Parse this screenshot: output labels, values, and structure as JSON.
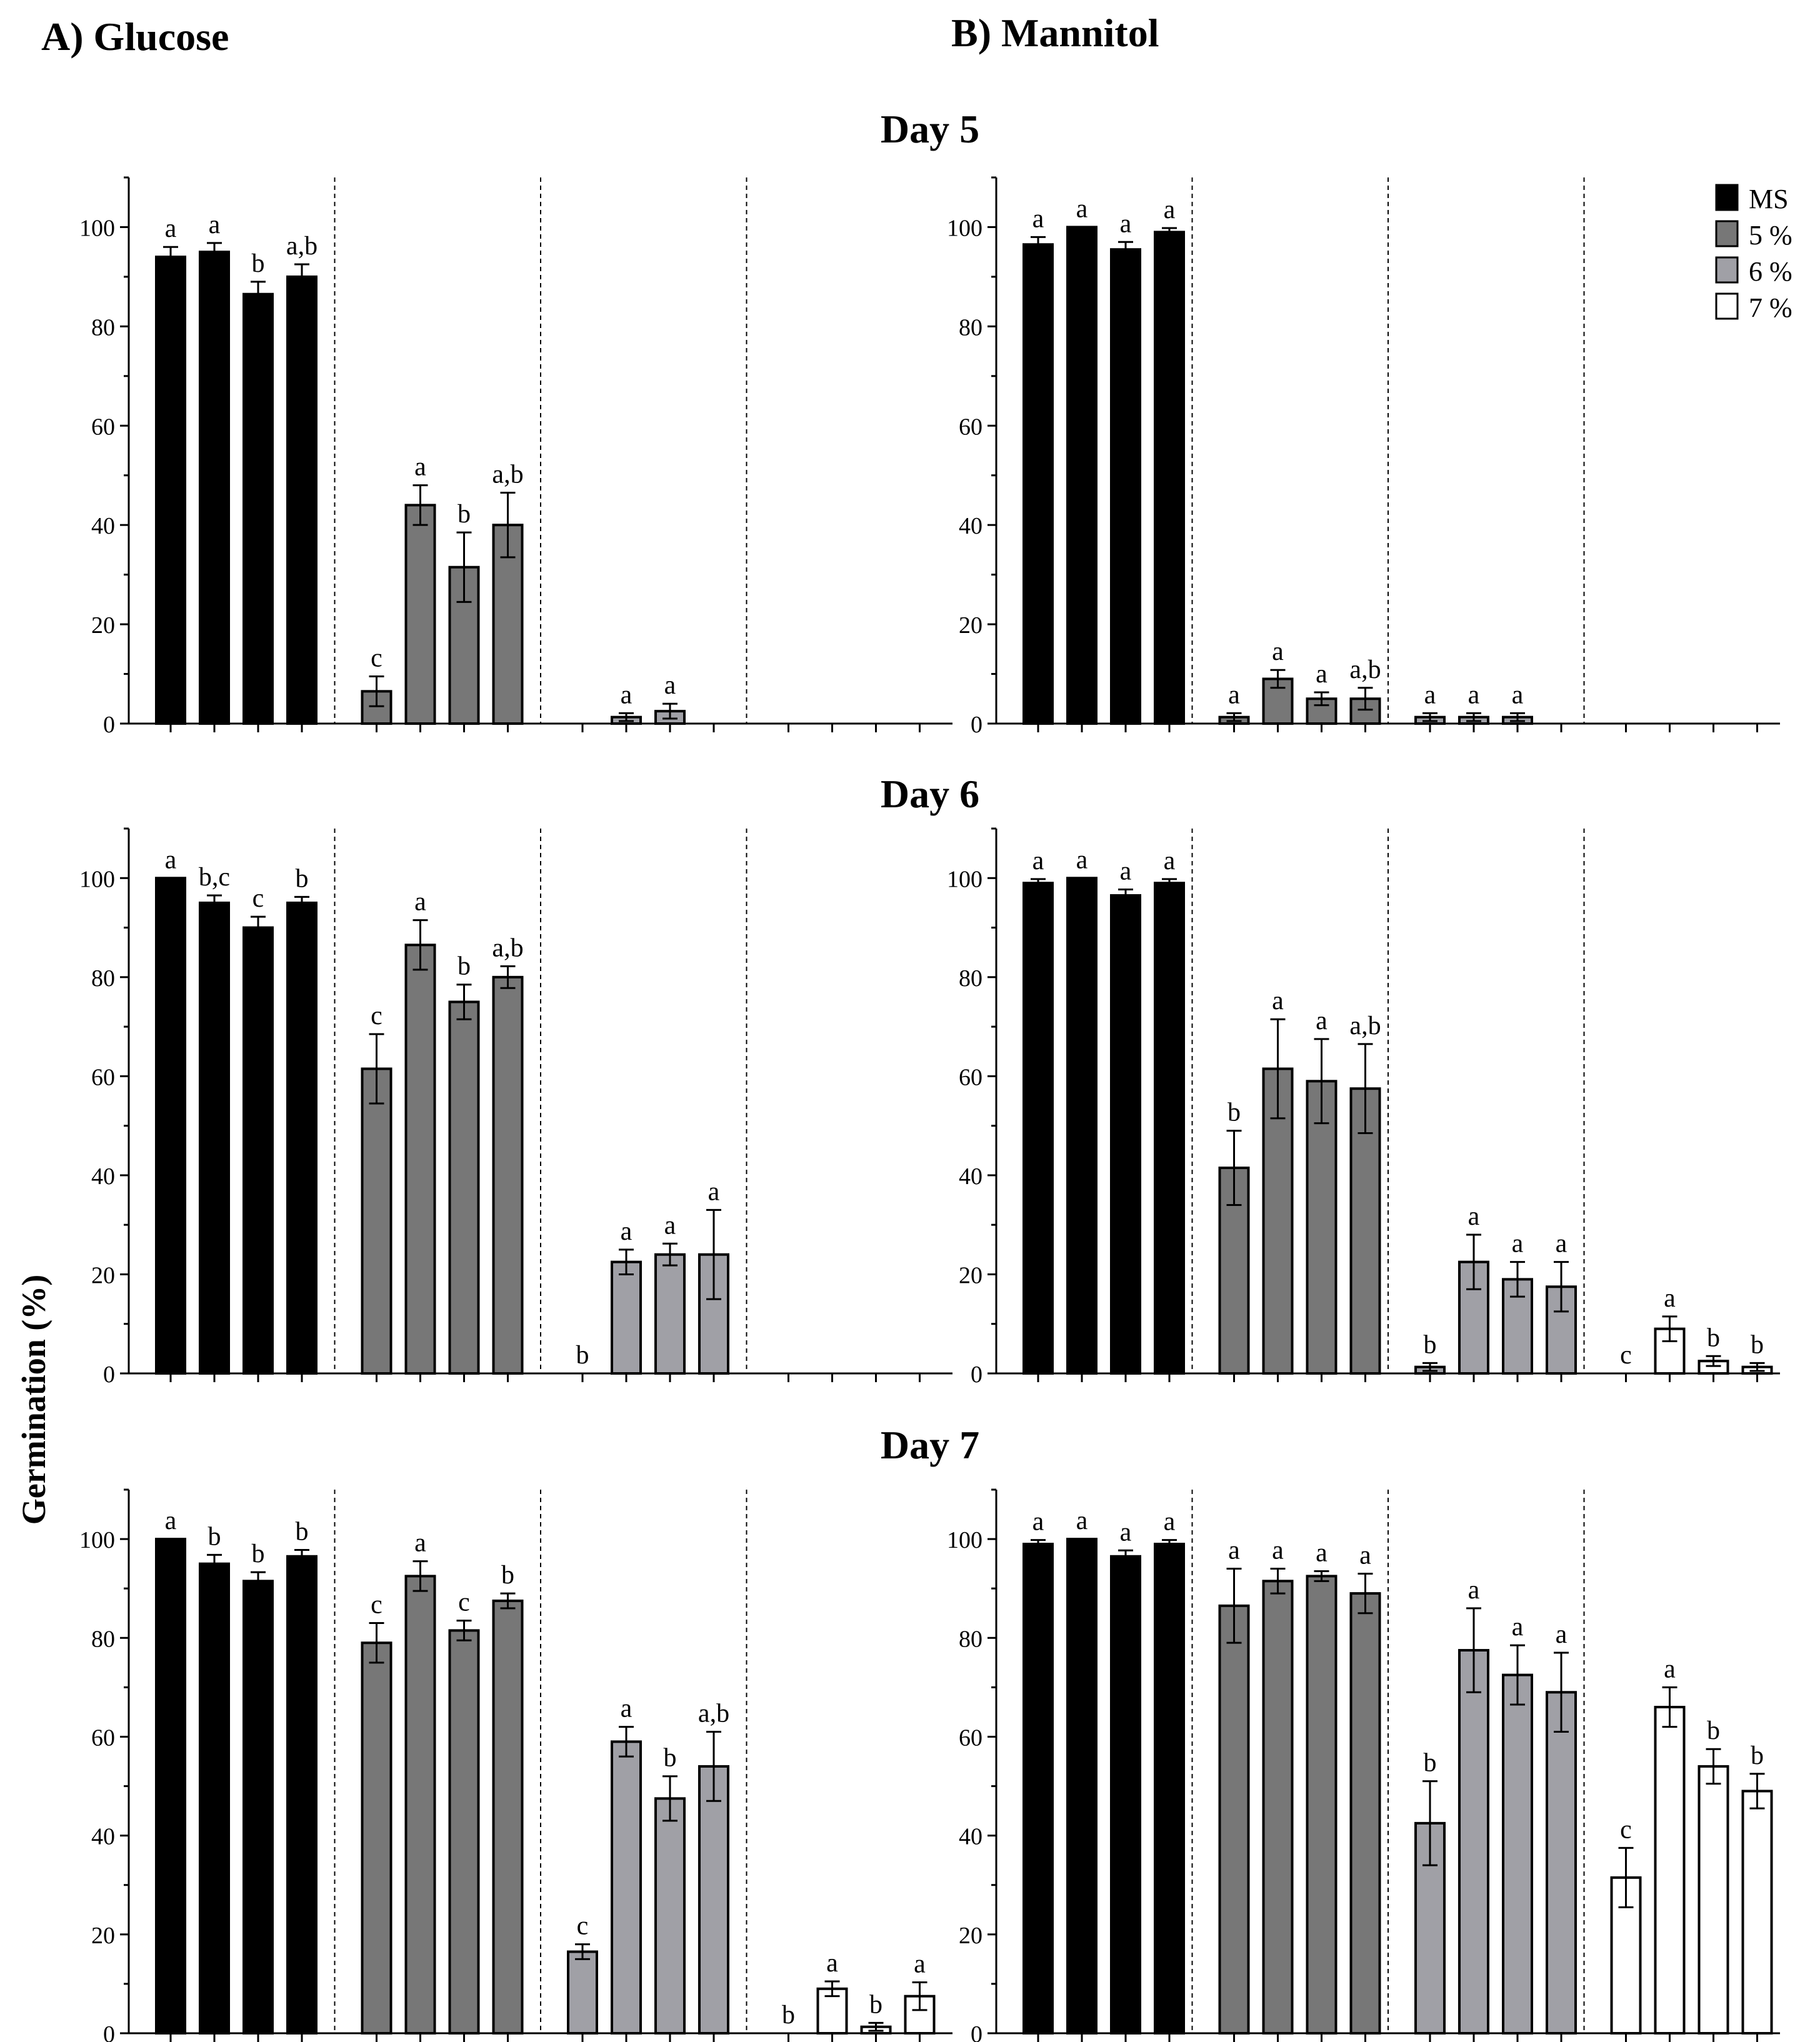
{
  "figure": {
    "panel_titles": [
      "A) Glucose",
      "B) Mannitol"
    ],
    "row_titles": [
      "Day 5",
      "Day 6",
      "Day 7"
    ],
    "ylabel": "Germination (%)",
    "yticks": [
      0,
      20,
      40,
      60,
      80,
      100
    ],
    "legend": [
      {
        "label": "MS",
        "color": "#000000"
      },
      {
        "label": "5 %",
        "color": "#777777"
      },
      {
        "label": "6 %",
        "color": "#a0a0a6"
      },
      {
        "label": "7 %",
        "color": "#ffffff"
      }
    ]
  },
  "chart_data": [
    {
      "type": "bar",
      "title": "A) Glucose — Day 5",
      "ylabel": "Germination (%)",
      "ylim": [
        0,
        110
      ],
      "groups": [
        "MS",
        "5 %",
        "6 %",
        "7 %"
      ],
      "values": [
        [
          94,
          95,
          86.5,
          90
        ],
        [
          6.5,
          44,
          31.5,
          40
        ],
        [
          null,
          1.3,
          2.5,
          null
        ],
        [
          null,
          null,
          null,
          null
        ]
      ],
      "errors": [
        [
          2,
          1.8,
          2.5,
          2.5
        ],
        [
          3,
          4,
          7,
          6.5
        ],
        [
          null,
          0.8,
          1.5,
          null
        ],
        [
          null,
          null,
          null,
          null
        ]
      ],
      "letters": [
        [
          "a",
          "a",
          "b",
          "a,b"
        ],
        [
          "c",
          "a",
          "b",
          "a,b"
        ],
        [
          "",
          "a",
          "a",
          ""
        ],
        [
          "",
          "",
          "",
          ""
        ]
      ]
    },
    {
      "type": "bar",
      "title": "B) Mannitol — Day 5",
      "ylabel": "Germination (%)",
      "ylim": [
        0,
        110
      ],
      "groups": [
        "MS",
        "5 %",
        "6 %",
        "7 %"
      ],
      "values": [
        [
          96.5,
          100,
          95.5,
          99
        ],
        [
          1.3,
          9,
          5,
          5
        ],
        [
          1.3,
          1.3,
          1.3,
          null
        ],
        [
          null,
          null,
          null,
          null
        ]
      ],
      "errors": [
        [
          1.5,
          0,
          1.5,
          0.8
        ],
        [
          0.8,
          1.8,
          1.3,
          2.2
        ],
        [
          0.8,
          0.8,
          0.8,
          null
        ],
        [
          null,
          null,
          null,
          null
        ]
      ],
      "letters": [
        [
          "a",
          "a",
          "a",
          "a"
        ],
        [
          "a",
          "a",
          "a",
          "a,b"
        ],
        [
          "a",
          "a",
          "a",
          ""
        ],
        [
          "",
          "",
          "",
          ""
        ]
      ]
    },
    {
      "type": "bar",
      "title": "A) Glucose — Day 6",
      "ylabel": "Germination (%)",
      "ylim": [
        0,
        110
      ],
      "groups": [
        "MS",
        "5 %",
        "6 %",
        "7 %"
      ],
      "values": [
        [
          100,
          95,
          90,
          95
        ],
        [
          61.5,
          86.5,
          75,
          80
        ],
        [
          0,
          22.5,
          24,
          24
        ],
        [
          null,
          null,
          null,
          null
        ]
      ],
      "errors": [
        [
          0,
          1.5,
          2.2,
          1.2
        ],
        [
          7,
          5,
          3.5,
          2.2
        ],
        [
          0,
          2.5,
          2.2,
          9
        ],
        [
          null,
          null,
          null,
          null
        ]
      ],
      "letters": [
        [
          "a",
          "b,c",
          "c",
          "b"
        ],
        [
          "c",
          "a",
          "b",
          "a,b"
        ],
        [
          "b",
          "a",
          "a",
          "a"
        ],
        [
          "",
          "",
          "",
          ""
        ]
      ]
    },
    {
      "type": "bar",
      "title": "B) Mannitol — Day 6",
      "ylabel": "Germination (%)",
      "ylim": [
        0,
        110
      ],
      "groups": [
        "MS",
        "5 %",
        "6 %",
        "7 %"
      ],
      "values": [
        [
          99,
          100,
          96.5,
          99
        ],
        [
          41.5,
          61.5,
          59,
          57.5
        ],
        [
          1.3,
          22.5,
          19,
          17.5
        ],
        [
          0,
          9,
          2.5,
          1.3
        ]
      ],
      "errors": [
        [
          0.8,
          0,
          1.2,
          0.8
        ],
        [
          7.5,
          10,
          8.5,
          9
        ],
        [
          0.8,
          5.5,
          3.5,
          5
        ],
        [
          0,
          2.5,
          1,
          0.8
        ]
      ],
      "letters": [
        [
          "a",
          "a",
          "a",
          "a"
        ],
        [
          "b",
          "a",
          "a",
          "a,b"
        ],
        [
          "b",
          "a",
          "a",
          "a"
        ],
        [
          "c",
          "a",
          "b",
          "b"
        ]
      ]
    },
    {
      "type": "bar",
      "title": "A) Glucose — Day 7",
      "ylabel": "Germination (%)",
      "ylim": [
        0,
        110
      ],
      "groups": [
        "MS",
        "5 %",
        "6 %",
        "7 %"
      ],
      "values": [
        [
          100,
          95,
          91.5,
          96.5
        ],
        [
          79,
          92.5,
          81.5,
          87.5
        ],
        [
          16.5,
          59,
          47.5,
          54
        ],
        [
          0,
          9,
          1.3,
          7.5
        ]
      ],
      "errors": [
        [
          0,
          1.8,
          1.8,
          1.3
        ],
        [
          4,
          3,
          2,
          1.5
        ],
        [
          1.5,
          3,
          4.5,
          7
        ],
        [
          0,
          1.5,
          0.8,
          2.8
        ]
      ],
      "letters": [
        [
          "a",
          "b",
          "b",
          "b"
        ],
        [
          "c",
          "a",
          "c",
          "b"
        ],
        [
          "c",
          "a",
          "b",
          "a,b"
        ],
        [
          "b",
          "a",
          "b",
          "a"
        ]
      ]
    },
    {
      "type": "bar",
      "title": "B) Mannitol — Day 7",
      "ylabel": "Germination (%)",
      "ylim": [
        0,
        110
      ],
      "groups": [
        "MS",
        "5 %",
        "6 %",
        "7 %"
      ],
      "values": [
        [
          99,
          100,
          96.5,
          99
        ],
        [
          86.5,
          91.5,
          92.5,
          89
        ],
        [
          42.5,
          77.5,
          72.5,
          69
        ],
        [
          31.5,
          66,
          54,
          49
        ]
      ],
      "errors": [
        [
          0.8,
          0,
          1.2,
          0.8
        ],
        [
          7.5,
          2.5,
          1,
          4
        ],
        [
          8.5,
          8.5,
          6,
          8
        ],
        [
          6,
          4,
          3.5,
          3.5
        ]
      ],
      "letters": [
        [
          "a",
          "a",
          "a",
          "a"
        ],
        [
          "a",
          "a",
          "a",
          "a"
        ],
        [
          "b",
          "a",
          "a",
          "a"
        ],
        [
          "c",
          "a",
          "b",
          "b"
        ]
      ]
    }
  ]
}
